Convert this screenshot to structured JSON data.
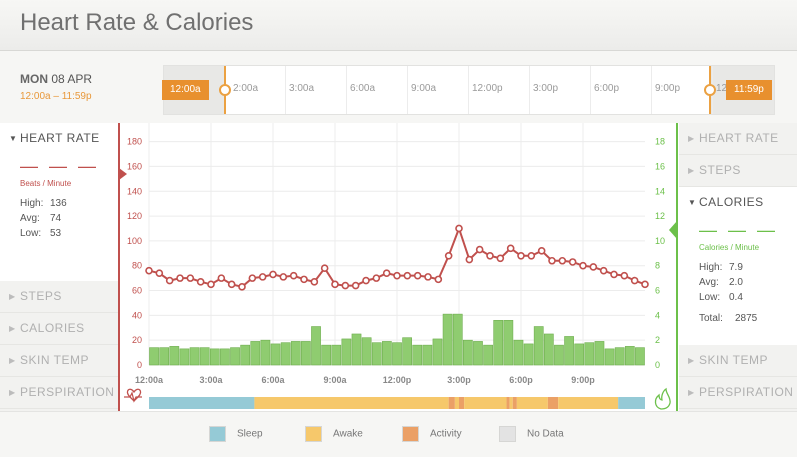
{
  "header": {
    "title": "Heart Rate & Calories"
  },
  "date": {
    "day": "MON",
    "date": "08 APR",
    "range": "12:00a – 11:59p"
  },
  "timeline": {
    "start_tag": "12:00a",
    "end_tag": "11:59p",
    "labels": [
      "2:00a",
      "3:00a",
      "6:00a",
      "9:00a",
      "12:00p",
      "3:00p",
      "6:00p",
      "9:00p",
      "12"
    ]
  },
  "left_sidebar": {
    "active": {
      "label": "HEART RATE",
      "placeholder": "— — —",
      "unit": "Beats / Minute",
      "stats": [
        {
          "label": "High:",
          "value": "136"
        },
        {
          "label": "Avg:",
          "value": "74"
        },
        {
          "label": "Low:",
          "value": "53"
        }
      ],
      "color": "#c0504d"
    },
    "items": [
      "STEPS",
      "CALORIES",
      "SKIN TEMP",
      "PERSPIRATION"
    ]
  },
  "right_sidebar": {
    "items_top": [
      "HEART RATE",
      "STEPS"
    ],
    "active": {
      "label": "CALORIES",
      "placeholder": "— — —",
      "unit": "Calories / Minute",
      "stats": [
        {
          "label": "High:",
          "value": "7.9"
        },
        {
          "label": "Avg:",
          "value": "2.0"
        },
        {
          "label": "Low:",
          "value": "0.4"
        }
      ],
      "total_label": "Total:",
      "total_value": "2875",
      "color": "#6cc04a"
    },
    "items_bottom": [
      "SKIN TEMP",
      "PERSPIRATION"
    ]
  },
  "chart_data": {
    "type": "line",
    "x_ticks": [
      "12:00a",
      "3:00a",
      "6:00a",
      "9:00a",
      "12:00p",
      "3:00p",
      "6:00p",
      "9:00p"
    ],
    "y_left_ticks": [
      "0",
      "20",
      "40",
      "60",
      "80",
      "100",
      "120",
      "140",
      "160",
      "180"
    ],
    "y_left_range": [
      0,
      195
    ],
    "y_right_ticks": [
      "0",
      "2",
      "4",
      "6",
      "8",
      "10",
      "12",
      "14",
      "16",
      "18"
    ],
    "y_right_range": [
      0,
      19.5
    ],
    "heart_rate": [
      76,
      74,
      68,
      70,
      70,
      67,
      65,
      70,
      65,
      63,
      70,
      71,
      73,
      71,
      72,
      69,
      67,
      78,
      65,
      64,
      64,
      68,
      70,
      74,
      72,
      72,
      72,
      71,
      69,
      88,
      110,
      85,
      93,
      88,
      86,
      94,
      88,
      88,
      92,
      84,
      84,
      83,
      80,
      79,
      76,
      73,
      72,
      68,
      65
    ],
    "calories": [
      1.4,
      1.4,
      1.5,
      1.3,
      1.4,
      1.4,
      1.3,
      1.3,
      1.4,
      1.6,
      1.9,
      2.0,
      1.7,
      1.8,
      1.9,
      1.9,
      3.1,
      1.6,
      1.6,
      2.1,
      2.5,
      2.2,
      1.8,
      1.9,
      1.8,
      2.2,
      1.6,
      1.6,
      2.1,
      4.1,
      4.1,
      2.0,
      1.9,
      1.6,
      3.6,
      3.6,
      2.0,
      1.7,
      3.1,
      2.5,
      1.6,
      2.3,
      1.7,
      1.8,
      1.9,
      1.3,
      1.4,
      1.5,
      1.4
    ],
    "activity_bar": [
      {
        "state": "sleep",
        "from": 0,
        "to": 5.1
      },
      {
        "state": "awake",
        "from": 5.1,
        "to": 14.5
      },
      {
        "state": "activity",
        "from": 14.5,
        "to": 14.8
      },
      {
        "state": "awake",
        "from": 14.8,
        "to": 15.0
      },
      {
        "state": "activity",
        "from": 15.0,
        "to": 15.25
      },
      {
        "state": "awake",
        "from": 15.25,
        "to": 17.3
      },
      {
        "state": "activity",
        "from": 17.3,
        "to": 17.45
      },
      {
        "state": "awake",
        "from": 17.45,
        "to": 17.6
      },
      {
        "state": "activity",
        "from": 17.6,
        "to": 17.8
      },
      {
        "state": "awake",
        "from": 17.8,
        "to": 19.3
      },
      {
        "state": "activity",
        "from": 19.3,
        "to": 19.8
      },
      {
        "state": "awake",
        "from": 19.8,
        "to": 22.7
      },
      {
        "state": "sleep",
        "from": 22.7,
        "to": 24
      }
    ]
  },
  "legend": {
    "items": [
      {
        "label": "Sleep",
        "color": "#95cad6"
      },
      {
        "label": "Awake",
        "color": "#f6c86b"
      },
      {
        "label": "Activity",
        "color": "#eba066"
      },
      {
        "label": "No Data",
        "color": "#e3e3e3"
      }
    ]
  },
  "colors": {
    "heart": "#c0504d",
    "calories_bar": "#8fcc70",
    "calories_border": "#6fae4f",
    "accent": "#e8902e"
  },
  "icons": {
    "heart": "heart-pulse-icon",
    "flame": "flame-icon"
  }
}
